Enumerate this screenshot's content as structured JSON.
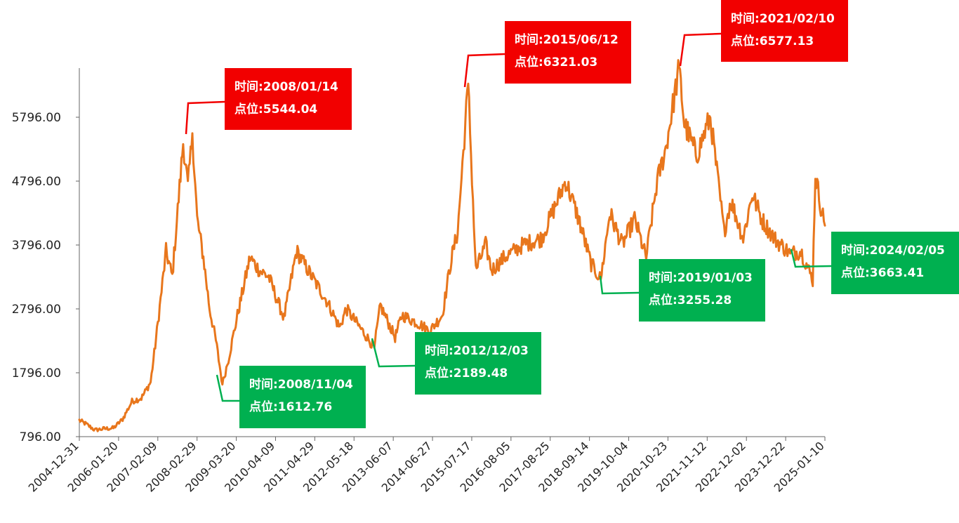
{
  "chart_data": {
    "type": "line",
    "title": "",
    "xlabel": "",
    "ylabel": "",
    "ylim": [
      796,
      6577.13
    ],
    "y_ticks": [
      "796.00",
      "1796.00",
      "2796.00",
      "3796.00",
      "4796.00",
      "5796.00"
    ],
    "x_ticks": [
      "2004-12-31",
      "2006-01-20",
      "2007-02-09",
      "2008-02-29",
      "2009-03-20",
      "2010-04-09",
      "2011-04-29",
      "2012-05-18",
      "2013-06-07",
      "2014-06-27",
      "2015-07-17",
      "2016-08-05",
      "2017-08-25",
      "2018-09-14",
      "2019-10-04",
      "2020-10-23",
      "2021-11-12",
      "2022-12-02",
      "2023-12-22",
      "2025-01-10"
    ],
    "x_range": [
      "2004-12-31",
      "2025-01-10"
    ],
    "grid": false,
    "line_color": "#E8761C",
    "peak_color": "#F20000",
    "trough_color": "#00B050",
    "series": [
      {
        "points": [
          [
            "2004-12-31",
            1050
          ],
          [
            "2005-03-01",
            1000
          ],
          [
            "2005-06-01",
            900
          ],
          [
            "2005-09-01",
            920
          ],
          [
            "2005-12-01",
            930
          ],
          [
            "2006-03-01",
            1070
          ],
          [
            "2006-06-01",
            1350
          ],
          [
            "2006-09-01",
            1400
          ],
          [
            "2006-12-01",
            1650
          ],
          [
            "2007-02-01",
            2450
          ],
          [
            "2007-05-01",
            3700
          ],
          [
            "2007-07-01",
            3300
          ],
          [
            "2007-10-16",
            5400
          ],
          [
            "2007-12-01",
            4700
          ],
          [
            "2008-01-14",
            5544.04
          ],
          [
            "2008-03-01",
            4200
          ],
          [
            "2008-05-01",
            3600
          ],
          [
            "2008-07-01",
            2800
          ],
          [
            "2008-09-01",
            2300
          ],
          [
            "2008-11-04",
            1612.76
          ],
          [
            "2009-01-01",
            2000
          ],
          [
            "2009-04-01",
            2700
          ],
          [
            "2009-08-01",
            3600
          ],
          [
            "2009-11-01",
            3400
          ],
          [
            "2010-02-01",
            3300
          ],
          [
            "2010-07-01",
            2650
          ],
          [
            "2010-11-01",
            3700
          ],
          [
            "2011-04-01",
            3300
          ],
          [
            "2011-09-01",
            2900
          ],
          [
            "2011-12-30",
            2500
          ],
          [
            "2012-03-01",
            2800
          ],
          [
            "2012-09-01",
            2400
          ],
          [
            "2012-12-03",
            2189.48
          ],
          [
            "2013-02-01",
            2850
          ],
          [
            "2013-06-25",
            2350
          ],
          [
            "2013-09-01",
            2700
          ],
          [
            "2014-03-01",
            2550
          ],
          [
            "2014-06-01",
            2450
          ],
          [
            "2014-10-01",
            2700
          ],
          [
            "2014-12-31",
            3600
          ],
          [
            "2015-03-01",
            4000
          ],
          [
            "2015-06-12",
            6321.03
          ],
          [
            "2015-08-26",
            3400
          ],
          [
            "2015-12-01",
            3800
          ],
          [
            "2016-01-28",
            3400
          ],
          [
            "2016-06-01",
            3600
          ],
          [
            "2016-12-01",
            3800
          ],
          [
            "2017-06-01",
            3900
          ],
          [
            "2018-01-24",
            4800
          ],
          [
            "2018-06-01",
            4200
          ],
          [
            "2018-10-01",
            3500
          ],
          [
            "2019-01-03",
            3255.28
          ],
          [
            "2019-04-01",
            4300
          ],
          [
            "2019-08-01",
            3800
          ],
          [
            "2019-12-01",
            4200
          ],
          [
            "2020-03-23",
            3600
          ],
          [
            "2020-07-10",
            4800
          ],
          [
            "2020-10-01",
            5300
          ],
          [
            "2021-02-10",
            6577.13
          ],
          [
            "2021-04-01",
            5700
          ],
          [
            "2021-08-01",
            5200
          ],
          [
            "2021-12-13",
            5800
          ],
          [
            "2022-04-27",
            4000
          ],
          [
            "2022-07-01",
            4500
          ],
          [
            "2022-10-31",
            3900
          ],
          [
            "2023-01-28",
            4600
          ],
          [
            "2023-05-01",
            4200
          ],
          [
            "2023-09-01",
            3900
          ],
          [
            "2024-02-05",
            3663.41
          ],
          [
            "2024-05-20",
            3700
          ],
          [
            "2024-09-13",
            3250
          ],
          [
            "2024-10-08",
            4900
          ],
          [
            "2024-12-01",
            4400
          ],
          [
            "2025-01-10",
            4100
          ]
        ]
      }
    ],
    "annotations": [
      {
        "kind": "peak",
        "date": "2008-01-14",
        "value": 5544.04,
        "time_text": "时间:2008/01/14",
        "value_text": "点位:5544.04"
      },
      {
        "kind": "trough",
        "date": "2008-11-04",
        "value": 1612.76,
        "time_text": "时间:2008/11/04",
        "value_text": "点位:1612.76"
      },
      {
        "kind": "trough",
        "date": "2012-12-03",
        "value": 2189.48,
        "time_text": "时间:2012/12/03",
        "value_text": "点位:2189.48"
      },
      {
        "kind": "peak",
        "date": "2015-06-12",
        "value": 6321.03,
        "time_text": "时间:2015/06/12",
        "value_text": "点位:6321.03"
      },
      {
        "kind": "trough",
        "date": "2019-01-03",
        "value": 3255.28,
        "time_text": "时间:2019/01/03",
        "value_text": "点位:3255.28"
      },
      {
        "kind": "peak",
        "date": "2021-02-10",
        "value": 6577.13,
        "time_text": "时间:2021/02/10",
        "value_text": "点位:6577.13"
      },
      {
        "kind": "trough",
        "date": "2024-02-05",
        "value": 3663.41,
        "time_text": "时间:2024/02/05",
        "value_text": "点位:3663.41"
      }
    ]
  }
}
